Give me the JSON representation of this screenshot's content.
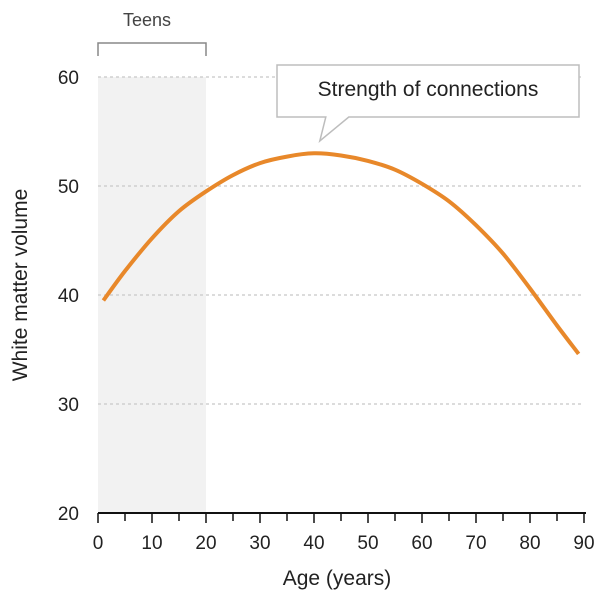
{
  "chart_data": {
    "type": "line",
    "xlabel": "Age (years)",
    "ylabel": "White matter volume",
    "xlim": [
      0,
      90
    ],
    "ylim": [
      20,
      60
    ],
    "x_ticks": [
      0,
      10,
      20,
      30,
      40,
      50,
      60,
      70,
      80,
      90
    ],
    "y_ticks": [
      20,
      30,
      40,
      50,
      60
    ],
    "grid": "horizontal dashed",
    "series": [
      {
        "color": "#e8882a",
        "x": [
          1,
          5,
          10,
          15,
          20,
          25,
          30,
          35,
          40,
          45,
          50,
          55,
          60,
          65,
          70,
          75,
          80,
          85,
          89
        ],
        "y": [
          39.5,
          42.2,
          45.2,
          47.7,
          49.5,
          51.0,
          52.1,
          52.7,
          53.0,
          52.8,
          52.3,
          51.5,
          50.2,
          48.6,
          46.4,
          43.8,
          40.6,
          37.2,
          34.6
        ]
      }
    ],
    "highlight_band": {
      "x": [
        0,
        20
      ],
      "label": "Teens",
      "color": "#f2f2f2"
    },
    "annotation": {
      "text": "Strength of connections",
      "points_to_x": 42
    }
  }
}
